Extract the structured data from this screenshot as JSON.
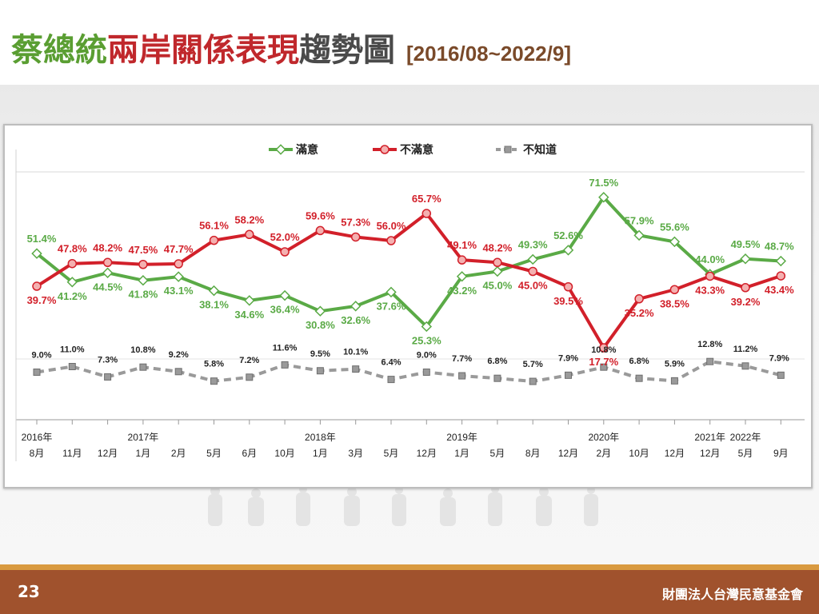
{
  "title": {
    "part1": "蔡總統",
    "part2": "兩岸關係表現",
    "part3": "趨勢圖",
    "range": "[2016/08~2022/9]"
  },
  "footer": {
    "page_number": "23",
    "organization": "財團法人台灣民意基金會"
  },
  "chart_data": {
    "type": "line",
    "years": [
      "2016年",
      "",
      "",
      "2017年",
      "",
      "",
      "",
      "",
      "2018年",
      "",
      "",
      "",
      "2019年",
      "",
      "",
      "",
      "2020年",
      "",
      "",
      "2021年",
      "2022年",
      ""
    ],
    "categories": [
      "8月",
      "11月",
      "12月",
      "1月",
      "2月",
      "5月",
      "6月",
      "10月",
      "1月",
      "3月",
      "5月",
      "12月",
      "1月",
      "5月",
      "8月",
      "12月",
      "2月",
      "10月",
      "12月",
      "12月",
      "5月",
      "9月"
    ],
    "series": [
      {
        "name": "滿意",
        "color": "#5aaa46",
        "values": [
          51.4,
          41.2,
          44.5,
          41.8,
          43.1,
          38.1,
          34.6,
          36.4,
          30.8,
          32.6,
          37.6,
          25.3,
          43.2,
          45.0,
          49.3,
          52.6,
          71.5,
          57.9,
          55.6,
          44.0,
          49.5,
          48.7
        ]
      },
      {
        "name": "不滿意",
        "color": "#d2202a",
        "values": [
          39.7,
          47.8,
          48.2,
          47.5,
          47.7,
          56.1,
          58.2,
          52.0,
          59.6,
          57.3,
          56.0,
          65.7,
          49.1,
          48.2,
          45.0,
          39.5,
          17.7,
          35.2,
          38.5,
          43.3,
          39.2,
          43.4
        ]
      },
      {
        "name": "不知道",
        "color": "#9a9a9a",
        "values": [
          9.0,
          11.0,
          7.3,
          10.8,
          9.2,
          5.8,
          7.2,
          11.6,
          9.5,
          10.1,
          6.4,
          9.0,
          7.7,
          6.8,
          5.7,
          7.9,
          10.8,
          6.8,
          5.9,
          12.8,
          11.2,
          7.9
        ]
      }
    ],
    "labels": {
      "滿意": [
        "51.4%",
        "41.2%",
        "44.5%",
        "41.8%",
        "43.1%",
        "38.1%",
        "34.6%",
        "36.4%",
        "30.8%",
        "32.6%",
        "37.6%",
        "25.3%",
        "43.2%",
        "45.0%",
        "49.3%",
        "52.6%",
        "71.5%",
        "57.9%",
        "55.6%",
        "44.0%",
        "49.5%",
        "48.7%"
      ],
      "不滿意": [
        "39.7%",
        "47.8%",
        "48.2%",
        "47.5%",
        "47.7%",
        "56.1%",
        "58.2%",
        "52.0%",
        "59.6%",
        "57.3%",
        "56.0%",
        "65.7%",
        "49.1%",
        "48.2%",
        "45.0%",
        "39.5%",
        "17.7%",
        "35.2%",
        "38.5%",
        "43.3%",
        "39.2%",
        "43.4%"
      ],
      "不知道": [
        "9.0%",
        "11.0%",
        "7.3%",
        "10.8%",
        "9.2%",
        "5.8%",
        "7.2%",
        "11.6%",
        "9.5%",
        "10.1%",
        "6.4%",
        "9.0%",
        "7.7%",
        "6.8%",
        "5.7%",
        "7.9%",
        "10.8%",
        "6.8%",
        "5.9%",
        "12.8%",
        "11.2%",
        "7.9%"
      ]
    },
    "ylim": [
      0,
      80
    ],
    "grid": true,
    "legend": "top-center"
  }
}
